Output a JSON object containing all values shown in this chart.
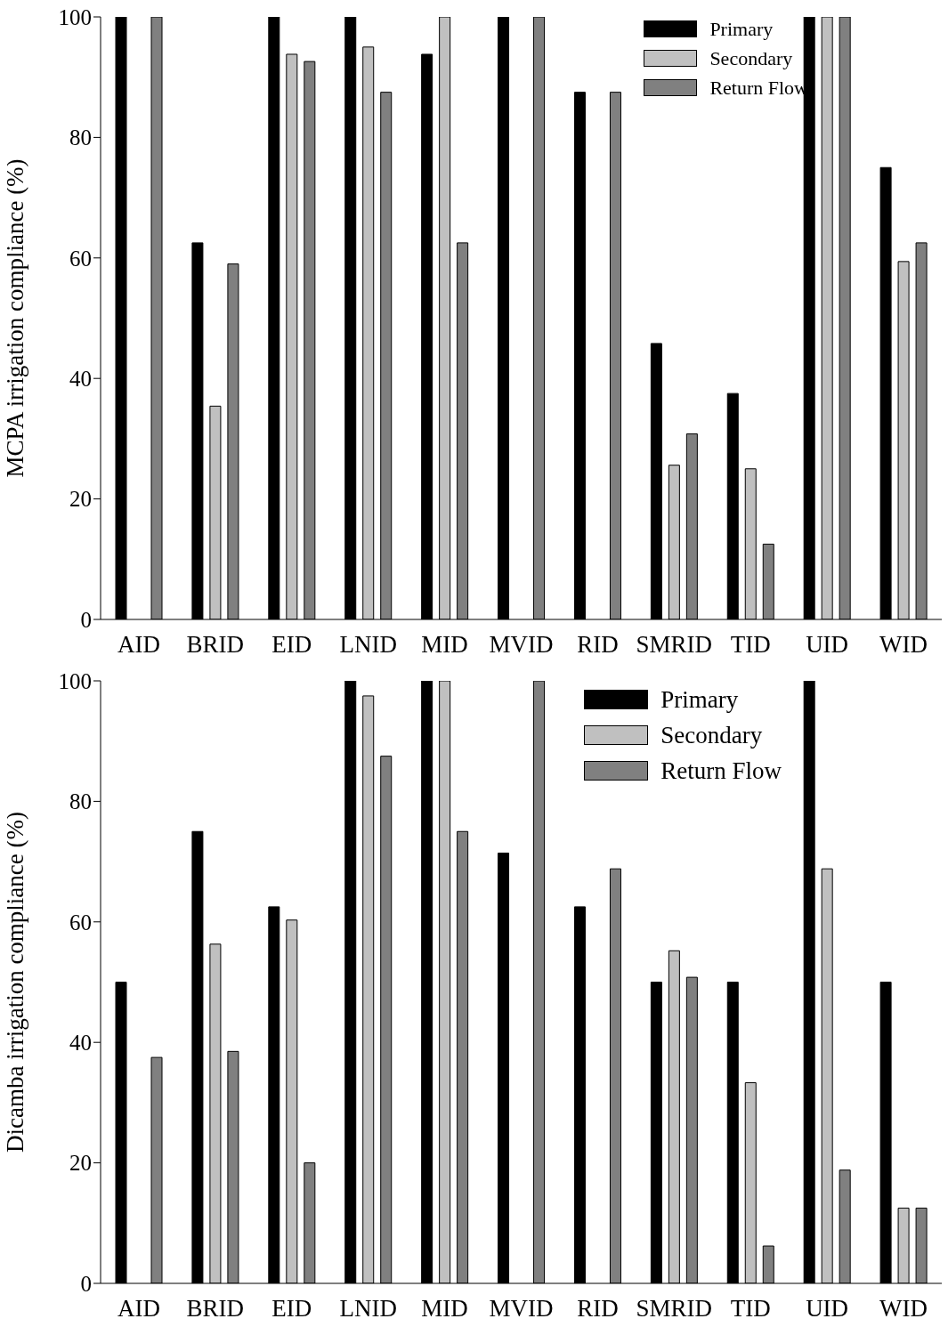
{
  "chart_data": [
    {
      "type": "bar",
      "ylabel": "MCPA  irrigation compliance (%)",
      "categories": [
        "AID",
        "BRID",
        "EID",
        "LNID",
        "MID",
        "MVID",
        "RID",
        "SMRID",
        "TID",
        "UID",
        "WID"
      ],
      "series": [
        {
          "name": "Primary",
          "color": "#000000",
          "values": [
            100,
            62.5,
            100,
            100,
            93.8,
            100,
            87.5,
            45.8,
            37.5,
            100,
            75
          ]
        },
        {
          "name": "Secondary",
          "color": "#c0c0c0",
          "values": [
            0,
            35.4,
            93.8,
            95,
            100,
            0,
            0,
            25.6,
            25,
            100,
            59.4
          ]
        },
        {
          "name": "Return Flow",
          "color": "#808080",
          "values": [
            100,
            59,
            92.6,
            87.5,
            62.5,
            100,
            87.5,
            30.8,
            12.5,
            100,
            62.5
          ]
        }
      ],
      "ylim": [
        0,
        100
      ],
      "yticks": [
        0,
        20,
        40,
        60,
        80,
        100
      ],
      "grid": false,
      "legend": "top right"
    },
    {
      "type": "bar",
      "ylabel": "Dicamba irrigation compliance (%)",
      "categories": [
        "AID",
        "BRID",
        "EID",
        "LNID",
        "MID",
        "MVID",
        "RID",
        "SMRID",
        "TID",
        "UID",
        "WID"
      ],
      "series": [
        {
          "name": "Primary",
          "color": "#000000",
          "values": [
            50,
            75,
            62.5,
            100,
            100,
            71.4,
            62.5,
            50,
            50,
            100,
            50
          ]
        },
        {
          "name": "Secondary",
          "color": "#c0c0c0",
          "values": [
            0,
            56.3,
            60.3,
            97.5,
            100,
            0,
            0,
            55.2,
            33.3,
            68.8,
            12.5
          ]
        },
        {
          "name": "Return Flow",
          "color": "#808080",
          "values": [
            37.5,
            38.5,
            20,
            87.5,
            75,
            100,
            68.8,
            50.8,
            6.2,
            18.8,
            12.5
          ]
        }
      ],
      "ylim": [
        0,
        100
      ],
      "yticks": [
        0,
        20,
        40,
        60,
        80,
        100
      ],
      "grid": false,
      "legend": "top right"
    }
  ]
}
